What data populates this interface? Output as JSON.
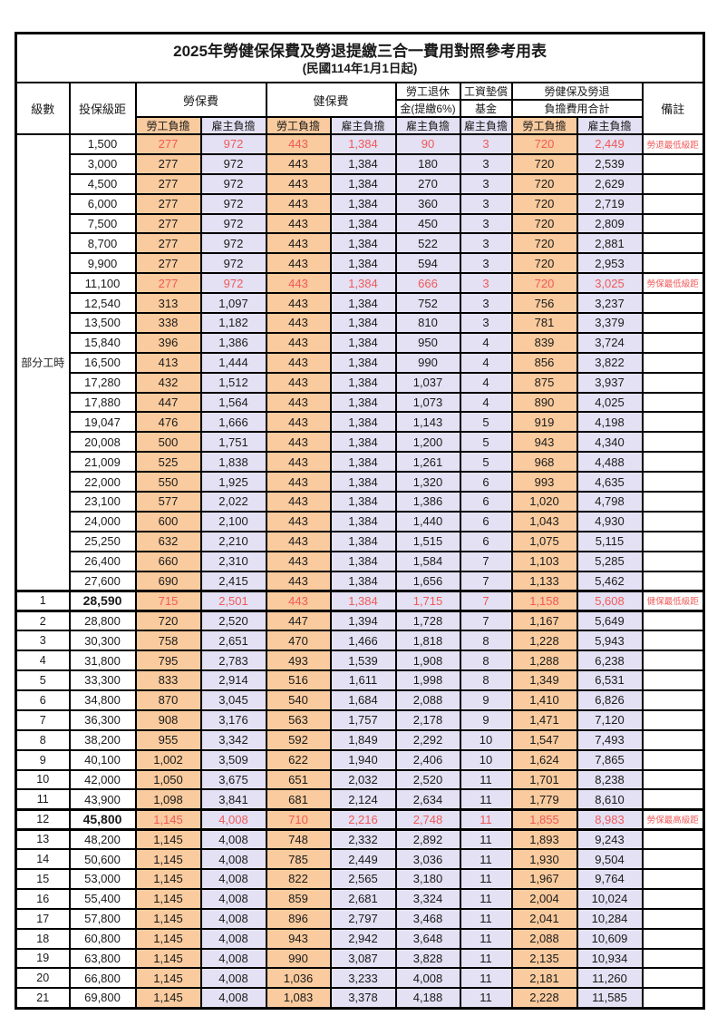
{
  "title": "2025年勞健保保費及勞退提繳三合一費用對照參考用表",
  "subtitle": "(民國114年1月1日起)",
  "colors": {
    "worker_bg": "#F9CB9E",
    "employer_bg": "#E3E1F3",
    "highlight_red": "#F15959",
    "grid": "#000000"
  },
  "header": {
    "level": "級數",
    "bracket": "投保級距",
    "labor_fee": "勞保費",
    "health_fee": "健保費",
    "pension_line1": "勞工退休",
    "pension_line2": "金(提繳6%)",
    "wage_fund_line1": "工資墊償",
    "wage_fund_line2": "基金",
    "total_line1": "勞健保及勞退",
    "total_line2": "負擔費用合計",
    "remark": "備註",
    "worker": "勞工負擔",
    "employer": "雇主負擔"
  },
  "part_time_label": "部分工時",
  "part_time_rowspan": 23,
  "rows": [
    {
      "level": "",
      "bracket": "1,500",
      "values": [
        "277",
        "972",
        "443",
        "1,384",
        "90",
        "3",
        "720",
        "2,449"
      ],
      "remark": "勞退最低級距",
      "red": true,
      "em": false
    },
    {
      "level": "",
      "bracket": "3,000",
      "values": [
        "277",
        "972",
        "443",
        "1,384",
        "180",
        "3",
        "720",
        "2,539"
      ],
      "remark": "",
      "red": false,
      "em": false
    },
    {
      "level": "",
      "bracket": "4,500",
      "values": [
        "277",
        "972",
        "443",
        "1,384",
        "270",
        "3",
        "720",
        "2,629"
      ],
      "remark": "",
      "red": false,
      "em": false
    },
    {
      "level": "",
      "bracket": "6,000",
      "values": [
        "277",
        "972",
        "443",
        "1,384",
        "360",
        "3",
        "720",
        "2,719"
      ],
      "remark": "",
      "red": false,
      "em": false
    },
    {
      "level": "",
      "bracket": "7,500",
      "values": [
        "277",
        "972",
        "443",
        "1,384",
        "450",
        "3",
        "720",
        "2,809"
      ],
      "remark": "",
      "red": false,
      "em": false
    },
    {
      "level": "",
      "bracket": "8,700",
      "values": [
        "277",
        "972",
        "443",
        "1,384",
        "522",
        "3",
        "720",
        "2,881"
      ],
      "remark": "",
      "red": false,
      "em": false
    },
    {
      "level": "",
      "bracket": "9,900",
      "values": [
        "277",
        "972",
        "443",
        "1,384",
        "594",
        "3",
        "720",
        "2,953"
      ],
      "remark": "",
      "red": false,
      "em": false
    },
    {
      "level": "",
      "bracket": "11,100",
      "values": [
        "277",
        "972",
        "443",
        "1,384",
        "666",
        "3",
        "720",
        "3,025"
      ],
      "remark": "勞保最低級距",
      "red": true,
      "em": false
    },
    {
      "level": "",
      "bracket": "12,540",
      "values": [
        "313",
        "1,097",
        "443",
        "1,384",
        "752",
        "3",
        "756",
        "3,237"
      ],
      "remark": "",
      "red": false,
      "em": false
    },
    {
      "level": "",
      "bracket": "13,500",
      "values": [
        "338",
        "1,182",
        "443",
        "1,384",
        "810",
        "3",
        "781",
        "3,379"
      ],
      "remark": "",
      "red": false,
      "em": false
    },
    {
      "level": "",
      "bracket": "15,840",
      "values": [
        "396",
        "1,386",
        "443",
        "1,384",
        "950",
        "4",
        "839",
        "3,724"
      ],
      "remark": "",
      "red": false,
      "em": false
    },
    {
      "level": "",
      "bracket": "16,500",
      "values": [
        "413",
        "1,444",
        "443",
        "1,384",
        "990",
        "4",
        "856",
        "3,822"
      ],
      "remark": "",
      "red": false,
      "em": false
    },
    {
      "level": "",
      "bracket": "17,280",
      "values": [
        "432",
        "1,512",
        "443",
        "1,384",
        "1,037",
        "4",
        "875",
        "3,937"
      ],
      "remark": "",
      "red": false,
      "em": false
    },
    {
      "level": "",
      "bracket": "17,880",
      "values": [
        "447",
        "1,564",
        "443",
        "1,384",
        "1,073",
        "4",
        "890",
        "4,025"
      ],
      "remark": "",
      "red": false,
      "em": false
    },
    {
      "level": "",
      "bracket": "19,047",
      "values": [
        "476",
        "1,666",
        "443",
        "1,384",
        "1,143",
        "5",
        "919",
        "4,198"
      ],
      "remark": "",
      "red": false,
      "em": false
    },
    {
      "level": "",
      "bracket": "20,008",
      "values": [
        "500",
        "1,751",
        "443",
        "1,384",
        "1,200",
        "5",
        "943",
        "4,340"
      ],
      "remark": "",
      "red": false,
      "em": false
    },
    {
      "level": "",
      "bracket": "21,009",
      "values": [
        "525",
        "1,838",
        "443",
        "1,384",
        "1,261",
        "5",
        "968",
        "4,488"
      ],
      "remark": "",
      "red": false,
      "em": false
    },
    {
      "level": "",
      "bracket": "22,000",
      "values": [
        "550",
        "1,925",
        "443",
        "1,384",
        "1,320",
        "6",
        "993",
        "4,635"
      ],
      "remark": "",
      "red": false,
      "em": false
    },
    {
      "level": "",
      "bracket": "23,100",
      "values": [
        "577",
        "2,022",
        "443",
        "1,384",
        "1,386",
        "6",
        "1,020",
        "4,798"
      ],
      "remark": "",
      "red": false,
      "em": false
    },
    {
      "level": "",
      "bracket": "24,000",
      "values": [
        "600",
        "2,100",
        "443",
        "1,384",
        "1,440",
        "6",
        "1,043",
        "4,930"
      ],
      "remark": "",
      "red": false,
      "em": false
    },
    {
      "level": "",
      "bracket": "25,250",
      "values": [
        "632",
        "2,210",
        "443",
        "1,384",
        "1,515",
        "6",
        "1,075",
        "5,115"
      ],
      "remark": "",
      "red": false,
      "em": false
    },
    {
      "level": "",
      "bracket": "26,400",
      "values": [
        "660",
        "2,310",
        "443",
        "1,384",
        "1,584",
        "7",
        "1,103",
        "5,285"
      ],
      "remark": "",
      "red": false,
      "em": false
    },
    {
      "level": "",
      "bracket": "27,600",
      "values": [
        "690",
        "2,415",
        "443",
        "1,384",
        "1,656",
        "7",
        "1,133",
        "5,462"
      ],
      "remark": "",
      "red": false,
      "em": false
    },
    {
      "level": "1",
      "bracket": "28,590",
      "values": [
        "715",
        "2,501",
        "443",
        "1,384",
        "1,715",
        "7",
        "1,158",
        "5,608"
      ],
      "remark": "健保最低級距",
      "red": true,
      "em": true
    },
    {
      "level": "2",
      "bracket": "28,800",
      "values": [
        "720",
        "2,520",
        "447",
        "1,394",
        "1,728",
        "7",
        "1,167",
        "5,649"
      ],
      "remark": "",
      "red": false,
      "em": false
    },
    {
      "level": "3",
      "bracket": "30,300",
      "values": [
        "758",
        "2,651",
        "470",
        "1,466",
        "1,818",
        "8",
        "1,228",
        "5,943"
      ],
      "remark": "",
      "red": false,
      "em": false
    },
    {
      "level": "4",
      "bracket": "31,800",
      "values": [
        "795",
        "2,783",
        "493",
        "1,539",
        "1,908",
        "8",
        "1,288",
        "6,238"
      ],
      "remark": "",
      "red": false,
      "em": false
    },
    {
      "level": "5",
      "bracket": "33,300",
      "values": [
        "833",
        "2,914",
        "516",
        "1,611",
        "1,998",
        "8",
        "1,349",
        "6,531"
      ],
      "remark": "",
      "red": false,
      "em": false
    },
    {
      "level": "6",
      "bracket": "34,800",
      "values": [
        "870",
        "3,045",
        "540",
        "1,684",
        "2,088",
        "9",
        "1,410",
        "6,826"
      ],
      "remark": "",
      "red": false,
      "em": false
    },
    {
      "level": "7",
      "bracket": "36,300",
      "values": [
        "908",
        "3,176",
        "563",
        "1,757",
        "2,178",
        "9",
        "1,471",
        "7,120"
      ],
      "remark": "",
      "red": false,
      "em": false
    },
    {
      "level": "8",
      "bracket": "38,200",
      "values": [
        "955",
        "3,342",
        "592",
        "1,849",
        "2,292",
        "10",
        "1,547",
        "7,493"
      ],
      "remark": "",
      "red": false,
      "em": false
    },
    {
      "level": "9",
      "bracket": "40,100",
      "values": [
        "1,002",
        "3,509",
        "622",
        "1,940",
        "2,406",
        "10",
        "1,624",
        "7,865"
      ],
      "remark": "",
      "red": false,
      "em": false
    },
    {
      "level": "10",
      "bracket": "42,000",
      "values": [
        "1,050",
        "3,675",
        "651",
        "2,032",
        "2,520",
        "11",
        "1,701",
        "8,238"
      ],
      "remark": "",
      "red": false,
      "em": false
    },
    {
      "level": "11",
      "bracket": "43,900",
      "values": [
        "1,098",
        "3,841",
        "681",
        "2,124",
        "2,634",
        "11",
        "1,779",
        "8,610"
      ],
      "remark": "",
      "red": false,
      "em": false
    },
    {
      "level": "12",
      "bracket": "45,800",
      "values": [
        "1,145",
        "4,008",
        "710",
        "2,216",
        "2,748",
        "11",
        "1,855",
        "8,983"
      ],
      "remark": "勞保最高級距",
      "red": true,
      "em": true
    },
    {
      "level": "13",
      "bracket": "48,200",
      "values": [
        "1,145",
        "4,008",
        "748",
        "2,332",
        "2,892",
        "11",
        "1,893",
        "9,243"
      ],
      "remark": "",
      "red": false,
      "em": false
    },
    {
      "level": "14",
      "bracket": "50,600",
      "values": [
        "1,145",
        "4,008",
        "785",
        "2,449",
        "3,036",
        "11",
        "1,930",
        "9,504"
      ],
      "remark": "",
      "red": false,
      "em": false
    },
    {
      "level": "15",
      "bracket": "53,000",
      "values": [
        "1,145",
        "4,008",
        "822",
        "2,565",
        "3,180",
        "11",
        "1,967",
        "9,764"
      ],
      "remark": "",
      "red": false,
      "em": false
    },
    {
      "level": "16",
      "bracket": "55,400",
      "values": [
        "1,145",
        "4,008",
        "859",
        "2,681",
        "3,324",
        "11",
        "2,004",
        "10,024"
      ],
      "remark": "",
      "red": false,
      "em": false
    },
    {
      "level": "17",
      "bracket": "57,800",
      "values": [
        "1,145",
        "4,008",
        "896",
        "2,797",
        "3,468",
        "11",
        "2,041",
        "10,284"
      ],
      "remark": "",
      "red": false,
      "em": false
    },
    {
      "level": "18",
      "bracket": "60,800",
      "values": [
        "1,145",
        "4,008",
        "943",
        "2,942",
        "3,648",
        "11",
        "2,088",
        "10,609"
      ],
      "remark": "",
      "red": false,
      "em": false
    },
    {
      "level": "19",
      "bracket": "63,800",
      "values": [
        "1,145",
        "4,008",
        "990",
        "3,087",
        "3,828",
        "11",
        "2,135",
        "10,934"
      ],
      "remark": "",
      "red": false,
      "em": false
    },
    {
      "level": "20",
      "bracket": "66,800",
      "values": [
        "1,145",
        "4,008",
        "1,036",
        "3,233",
        "4,008",
        "11",
        "2,181",
        "11,260"
      ],
      "remark": "",
      "red": false,
      "em": false
    },
    {
      "level": "21",
      "bracket": "69,800",
      "values": [
        "1,145",
        "4,008",
        "1,083",
        "3,378",
        "4,188",
        "11",
        "2,228",
        "11,585"
      ],
      "remark": "",
      "red": false,
      "em": false
    }
  ]
}
